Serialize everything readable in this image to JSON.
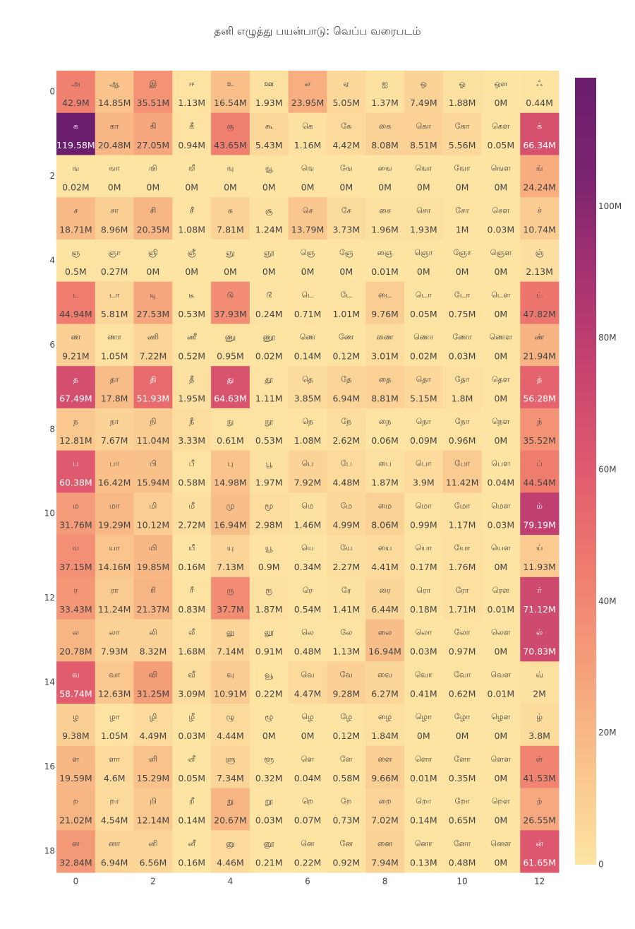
{
  "chart_data": {
    "type": "heatmap",
    "title": "தனி எழுத்து பயன்பாடு: வெப்ப வரைபடம்",
    "xlabel": "",
    "ylabel": "",
    "x_ticks": [
      "0",
      "2",
      "4",
      "6",
      "8",
      "10",
      "12"
    ],
    "y_ticks": [
      "0",
      "2",
      "4",
      "6",
      "8",
      "10",
      "12",
      "14",
      "16",
      "18"
    ],
    "colorbar": {
      "ticks": [
        "0",
        "20M",
        "40M",
        "60M",
        "80M",
        "100M"
      ],
      "max": 119.58,
      "colorscale": [
        "#fde4a3",
        "#f9c38b",
        "#f5a07a",
        "#ef7c6e",
        "#e05b6e",
        "#c8446f",
        "#a53271",
        "#7b2470",
        "#6b1d6e"
      ]
    },
    "letters": [
      [
        "அ",
        "ஆ",
        "இ",
        "ஈ",
        "உ",
        "ஊ",
        "எ",
        "ஏ",
        "ஐ",
        "ஒ",
        "ஓ",
        "ஔ",
        "ஃ"
      ],
      [
        "க",
        "கா",
        "கி",
        "கீ",
        "கு",
        "கூ",
        "கெ",
        "கே",
        "கை",
        "கொ",
        "கோ",
        "கௌ",
        "க்"
      ],
      [
        "ங",
        "ஙா",
        "ஙி",
        "ஙீ",
        "ஙு",
        "ஙூ",
        "ஙெ",
        "ஙே",
        "ஙை",
        "ஙொ",
        "ஙோ",
        "ஙௌ",
        "ங்"
      ],
      [
        "ச",
        "சா",
        "சி",
        "சீ",
        "சு",
        "சூ",
        "செ",
        "சே",
        "சை",
        "சொ",
        "சோ",
        "சௌ",
        "ச்"
      ],
      [
        "ஞ",
        "ஞா",
        "ஞி",
        "ஞீ",
        "ஞு",
        "ஞூ",
        "ஞெ",
        "ஞே",
        "ஞை",
        "ஞொ",
        "ஞோ",
        "ஞௌ",
        "ஞ்"
      ],
      [
        "ட",
        "டா",
        "டி",
        "டீ",
        "டு",
        "டூ",
        "டெ",
        "டே",
        "டை",
        "டொ",
        "டோ",
        "டௌ",
        "ட்"
      ],
      [
        "ண",
        "ணா",
        "ணி",
        "ணீ",
        "ணு",
        "ணூ",
        "ணெ",
        "ணே",
        "ணை",
        "ணொ",
        "ணோ",
        "ணௌ",
        "ண்"
      ],
      [
        "த",
        "தா",
        "தி",
        "தீ",
        "து",
        "தூ",
        "தெ",
        "தே",
        "தை",
        "தொ",
        "தோ",
        "தௌ",
        "த்"
      ],
      [
        "ந",
        "நா",
        "நி",
        "நீ",
        "நு",
        "நூ",
        "நெ",
        "நே",
        "நை",
        "நொ",
        "நோ",
        "நௌ",
        "ந்"
      ],
      [
        "ப",
        "பா",
        "பி",
        "பீ",
        "பு",
        "பூ",
        "பெ",
        "பே",
        "பை",
        "பொ",
        "போ",
        "பௌ",
        "ப்"
      ],
      [
        "ம",
        "மா",
        "மி",
        "மீ",
        "மு",
        "மூ",
        "மெ",
        "மே",
        "மை",
        "மொ",
        "மோ",
        "மௌ",
        "ம்"
      ],
      [
        "ய",
        "யா",
        "யி",
        "யீ",
        "யு",
        "யூ",
        "யெ",
        "யே",
        "யை",
        "யொ",
        "யோ",
        "யௌ",
        "ய்"
      ],
      [
        "ர",
        "ரா",
        "ரி",
        "ரீ",
        "ரு",
        "ரூ",
        "ரெ",
        "ரே",
        "ரை",
        "ரொ",
        "ரோ",
        "ரௌ",
        "ர்"
      ],
      [
        "ல",
        "லா",
        "லி",
        "லீ",
        "லு",
        "லூ",
        "லெ",
        "லே",
        "லை",
        "லொ",
        "லோ",
        "லௌ",
        "ல்"
      ],
      [
        "வ",
        "வா",
        "வி",
        "வீ",
        "வு",
        "வூ",
        "வெ",
        "வே",
        "வை",
        "வொ",
        "வோ",
        "வௌ",
        "வ்"
      ],
      [
        "ழ",
        "ழா",
        "ழி",
        "ழீ",
        "ழு",
        "ழூ",
        "ழெ",
        "ழே",
        "ழை",
        "ழொ",
        "ழோ",
        "ழௌ",
        "ழ்"
      ],
      [
        "ள",
        "ளா",
        "ளி",
        "ளீ",
        "ளு",
        "ளூ",
        "ளெ",
        "ளே",
        "ளை",
        "ளொ",
        "ளோ",
        "ளௌ",
        "ள்"
      ],
      [
        "ற",
        "றா",
        "றி",
        "றீ",
        "று",
        "றூ",
        "றெ",
        "றே",
        "றை",
        "றொ",
        "றோ",
        "றௌ",
        "ற்"
      ],
      [
        "ன",
        "னா",
        "னி",
        "னீ",
        "னு",
        "னூ",
        "னெ",
        "னே",
        "னை",
        "னொ",
        "னோ",
        "னௌ",
        "ன்"
      ]
    ],
    "values": [
      [
        42.9,
        14.85,
        35.51,
        1.13,
        16.54,
        1.93,
        23.95,
        5.05,
        1.37,
        7.49,
        1.88,
        0.0,
        0.44
      ],
      [
        119.58,
        20.48,
        27.05,
        0.94,
        43.65,
        5.43,
        1.16,
        4.42,
        8.08,
        8.51,
        5.56,
        0.05,
        66.34
      ],
      [
        0.02,
        0.0,
        0.0,
        0.0,
        0.0,
        0.0,
        0.0,
        0.0,
        0.0,
        0.0,
        0.0,
        0.0,
        24.24
      ],
      [
        18.71,
        8.96,
        20.35,
        1.08,
        7.81,
        1.24,
        13.79,
        3.73,
        1.96,
        1.93,
        1.0,
        0.03,
        10.74
      ],
      [
        0.5,
        0.27,
        0.0,
        0.0,
        0.0,
        0.0,
        0.0,
        0.0,
        0.01,
        0.0,
        0.0,
        0.0,
        2.13
      ],
      [
        44.94,
        5.81,
        27.53,
        0.53,
        37.93,
        0.24,
        0.71,
        1.01,
        9.76,
        0.05,
        0.75,
        0.0,
        47.82
      ],
      [
        9.21,
        1.05,
        7.22,
        0.52,
        0.95,
        0.02,
        0.14,
        0.12,
        3.01,
        0.02,
        0.03,
        0.0,
        21.94
      ],
      [
        67.49,
        17.8,
        51.93,
        1.95,
        64.63,
        1.11,
        3.85,
        6.94,
        8.81,
        5.15,
        1.8,
        0.0,
        56.28
      ],
      [
        12.81,
        7.67,
        11.04,
        3.33,
        0.61,
        0.53,
        1.08,
        2.62,
        0.06,
        0.09,
        0.96,
        0.0,
        35.52
      ],
      [
        60.38,
        16.42,
        15.94,
        0.58,
        14.98,
        1.97,
        7.92,
        4.48,
        1.87,
        3.9,
        11.42,
        0.04,
        44.54
      ],
      [
        31.76,
        19.29,
        10.12,
        2.72,
        16.94,
        2.98,
        1.46,
        4.99,
        8.06,
        0.99,
        1.17,
        0.03,
        79.19
      ],
      [
        37.15,
        14.16,
        19.85,
        0.16,
        7.13,
        0.9,
        0.34,
        2.27,
        4.41,
        0.17,
        1.76,
        0.0,
        11.93
      ],
      [
        33.43,
        11.24,
        21.37,
        0.83,
        37.7,
        1.87,
        0.54,
        1.41,
        6.44,
        0.18,
        1.71,
        0.01,
        71.12
      ],
      [
        20.78,
        7.93,
        8.32,
        1.68,
        7.14,
        0.91,
        0.48,
        1.13,
        16.94,
        0.03,
        0.97,
        0.0,
        70.83
      ],
      [
        58.74,
        12.63,
        31.25,
        3.09,
        10.91,
        0.22,
        4.47,
        9.28,
        6.27,
        0.41,
        0.62,
        0.01,
        2.0
      ],
      [
        9.38,
        1.05,
        4.49,
        0.03,
        4.44,
        0.0,
        0.0,
        0.12,
        1.84,
        0.0,
        0.0,
        0.0,
        3.8
      ],
      [
        19.59,
        4.6,
        15.29,
        0.05,
        7.34,
        0.32,
        0.04,
        0.58,
        9.66,
        0.01,
        0.35,
        0.0,
        41.53
      ],
      [
        21.02,
        4.54,
        12.14,
        0.14,
        20.67,
        0.03,
        0.07,
        0.73,
        7.02,
        0.14,
        0.65,
        0.0,
        26.55
      ],
      [
        32.84,
        6.94,
        6.56,
        0.16,
        4.46,
        0.21,
        0.22,
        0.92,
        7.94,
        0.13,
        0.48,
        0.0,
        61.65
      ]
    ],
    "value_unit": "M"
  }
}
